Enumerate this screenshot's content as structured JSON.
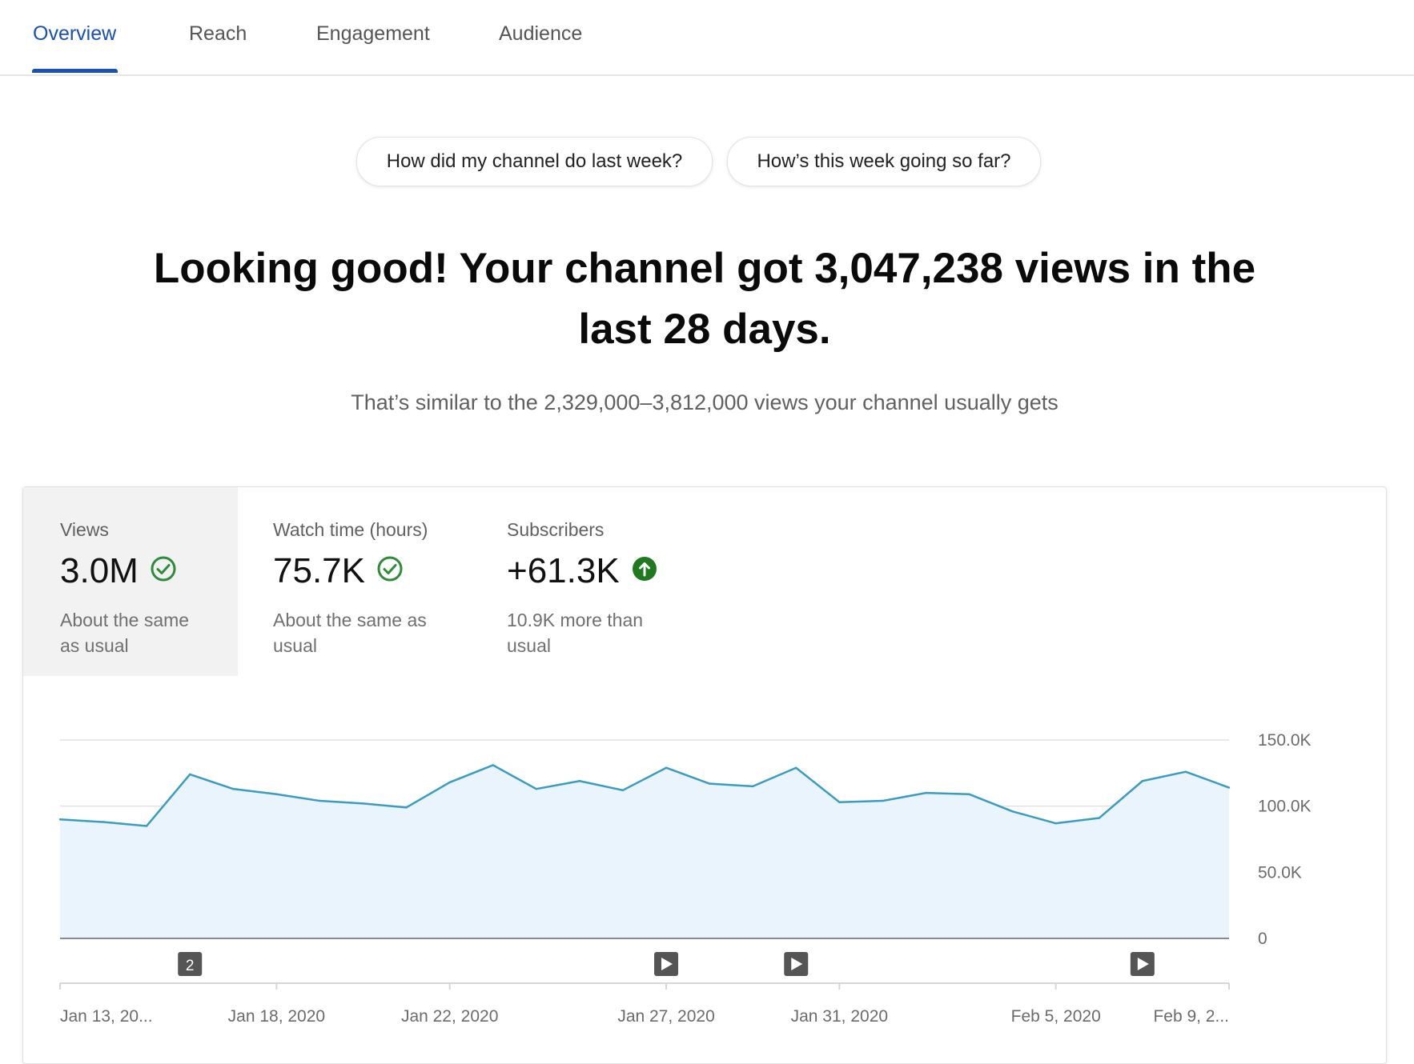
{
  "tabs": [
    {
      "label": "Overview",
      "active": true
    },
    {
      "label": "Reach",
      "active": false
    },
    {
      "label": "Engagement",
      "active": false
    },
    {
      "label": "Audience",
      "active": false
    }
  ],
  "questions": [
    "How did my channel do last week?",
    "How’s this week going so far?"
  ],
  "headline": {
    "line1": "Looking good! Your channel got 3,047,238 views in the",
    "line2": "last 28 days."
  },
  "subline": "That’s similar to the 2,329,000–3,812,000 views your channel usually gets",
  "metrics": [
    {
      "label": "Views",
      "value": "3.0M",
      "status_icon": "check-circle-icon",
      "note_line1": "About the same",
      "note_line2": "as usual",
      "selected": true
    },
    {
      "label": "Watch time (hours)",
      "value": "75.7K",
      "status_icon": "check-circle-icon",
      "note_line1": "About the same as",
      "note_line2": "usual",
      "selected": false
    },
    {
      "label": "Subscribers",
      "value": "+61.3K",
      "status_icon": "arrow-up-circle-icon",
      "note_line1": "10.9K more than",
      "note_line2": "usual",
      "selected": false
    }
  ],
  "colors": {
    "accent": "#1a4fb5",
    "line": "#3a9cc0",
    "area": "#eaf4fc",
    "ok_green": "#2e8b3a",
    "up_green": "#1f7a1f"
  },
  "chart_data": {
    "type": "area",
    "series": [
      {
        "values": [
          90000,
          88000,
          85000,
          124000,
          113000,
          109000,
          104000,
          102000,
          99000,
          118000,
          131000,
          113000,
          119000,
          112000,
          129000,
          117000,
          115000,
          129000,
          103000,
          104000,
          110000,
          109000,
          96000,
          87000,
          91000,
          119000,
          126000,
          114000
        ]
      }
    ],
    "x_tick_labels": [
      "Jan 13, 20...",
      "Jan 18, 2020",
      "Jan 22, 2020",
      "Jan 27, 2020",
      "Jan 31, 2020",
      "Feb 5, 2020",
      "Feb 9, 2..."
    ],
    "x_tick_indices": [
      0,
      5,
      9,
      14,
      18,
      23,
      27
    ],
    "y_tick_labels": [
      "150.0K",
      "100.0K",
      "50.0K",
      "0"
    ],
    "y_tick_values": [
      150000,
      100000,
      50000,
      0
    ],
    "ylim": [
      0,
      150000
    ],
    "grid": true,
    "markers": [
      {
        "index": 3,
        "kind": "count-badge",
        "label": "2"
      },
      {
        "index": 14,
        "kind": "video-icon",
        "label": ""
      },
      {
        "index": 17,
        "kind": "video-icon",
        "label": ""
      },
      {
        "index": 25,
        "kind": "video-icon",
        "label": ""
      }
    ]
  }
}
